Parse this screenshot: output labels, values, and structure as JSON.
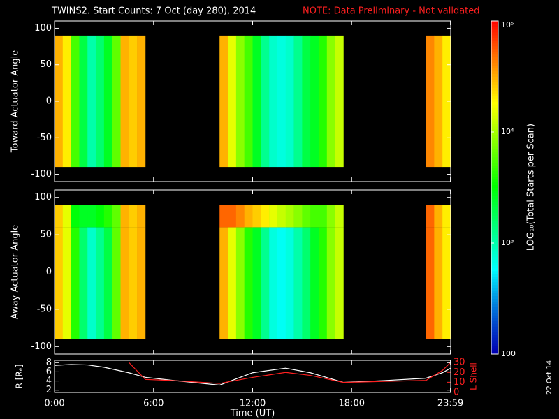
{
  "title": "TWINS2. Start Counts:  7 Oct (day 280), 2014",
  "note": "NOTE: Data Preliminary - Not validated",
  "footer_date": "22 Oct 14",
  "colorbar": {
    "label": "LOG₁₀(Total Starts per Scan)",
    "lim": [
      100,
      100000
    ],
    "log": true,
    "ticks": [
      100,
      {
        "value": 1000,
        "label": "10³"
      },
      {
        "value": 10000,
        "label": "10⁴"
      },
      {
        "value": 100000,
        "label": "10⁵"
      }
    ]
  },
  "chart_data": [
    {
      "type": "heatmap",
      "y_label": "Toward Actuator Angle",
      "xlim": [
        0,
        24
      ],
      "xticks": [
        0,
        6,
        12,
        18,
        23.983
      ],
      "ylim": [
        -110,
        110
      ],
      "yticks": [
        -100,
        -50,
        0,
        50,
        100
      ],
      "x_bins": [
        0,
        0.5,
        1,
        1.5,
        2,
        2.5,
        3,
        3.5,
        4,
        4.5,
        5,
        5.5,
        10,
        10.5,
        11,
        11.5,
        12,
        12.5,
        13,
        13.5,
        14,
        14.5,
        15,
        15.5,
        16,
        16.5,
        17,
        17.5,
        22.5,
        23,
        23.5,
        24
      ],
      "y_bins": [
        -90,
        90
      ],
      "values": [
        [
          30000
        ],
        [
          20000
        ],
        [
          5000
        ],
        [
          2000
        ],
        [
          1000
        ],
        [
          1500
        ],
        [
          2500
        ],
        [
          6000
        ],
        [
          30000
        ],
        [
          25000
        ],
        [
          30000
        ],
        [
          null
        ],
        [
          30000
        ],
        [
          15000
        ],
        [
          8000
        ],
        [
          5000
        ],
        [
          2500
        ],
        [
          1200
        ],
        [
          800
        ],
        [
          700
        ],
        [
          800
        ],
        [
          1200
        ],
        [
          2000
        ],
        [
          2500
        ],
        [
          4000
        ],
        [
          8000
        ],
        [
          12000
        ],
        [
          null
        ],
        [
          40000
        ],
        [
          30000
        ],
        [
          20000
        ]
      ]
    },
    {
      "type": "heatmap",
      "y_label": "Away Actuator Angle",
      "xlim": [
        0,
        24
      ],
      "xticks": [
        0,
        6,
        12,
        18,
        23.983
      ],
      "ylim": [
        -110,
        110
      ],
      "yticks": [
        -100,
        -50,
        0,
        50,
        100
      ],
      "x_bins": [
        0,
        0.5,
        1,
        1.5,
        2,
        2.5,
        3,
        3.5,
        4,
        4.5,
        5,
        5.5,
        10,
        10.5,
        11,
        11.5,
        12,
        12.5,
        13,
        13.5,
        14,
        14.5,
        15,
        15.5,
        16,
        16.5,
        17,
        17.5,
        22.5,
        23,
        23.5,
        24
      ],
      "y_bins": [
        -90,
        60,
        90
      ],
      "values": [
        [
          25000,
          25000
        ],
        [
          15000,
          15000
        ],
        [
          4000,
          3000
        ],
        [
          1500,
          2500
        ],
        [
          800,
          2500
        ],
        [
          1200,
          3000
        ],
        [
          2000,
          4000
        ],
        [
          6000,
          6000
        ],
        [
          30000,
          30000
        ],
        [
          25000,
          25000
        ],
        [
          30000,
          30000
        ],
        [
          null,
          null
        ],
        [
          30000,
          50000
        ],
        [
          15000,
          50000
        ],
        [
          8000,
          40000
        ],
        [
          4000,
          30000
        ],
        [
          2500,
          25000
        ],
        [
          1200,
          20000
        ],
        [
          700,
          15000
        ],
        [
          600,
          12000
        ],
        [
          700,
          10000
        ],
        [
          1000,
          8000
        ],
        [
          1500,
          6000
        ],
        [
          2500,
          5000
        ],
        [
          4000,
          5000
        ],
        [
          8000,
          8000
        ],
        [
          12000,
          12000
        ],
        [
          null,
          null
        ],
        [
          50000,
          50000
        ],
        [
          30000,
          30000
        ],
        [
          20000,
          20000
        ]
      ]
    },
    {
      "type": "line",
      "x_label": "Time (UT)",
      "y_label": "R [Rₑ]",
      "y2_label": "L Shell",
      "xlim": [
        0,
        24
      ],
      "xticks": [
        {
          "value": 0,
          "label": "0:00"
        },
        {
          "value": 6,
          "label": "6:00"
        },
        {
          "value": 12,
          "label": "12:00"
        },
        {
          "value": 18,
          "label": "18:00"
        },
        {
          "value": 23.983,
          "label": "23:59"
        }
      ],
      "ylim": [
        1.5,
        8.5
      ],
      "yticks": [
        2,
        4,
        6,
        8
      ],
      "y2lim": [
        0,
        32
      ],
      "y2ticks": [
        0,
        10,
        20,
        30
      ],
      "x": [
        0,
        1,
        2,
        3,
        4,
        4.5,
        5.5,
        7,
        10,
        12,
        14,
        15.5,
        17.5,
        20,
        22.5,
        23.5,
        24
      ],
      "series": [
        {
          "name": "R",
          "color": "#ffffff",
          "values": [
            7.4,
            7.6,
            7.5,
            7,
            6.2,
            5.8,
            4.8,
            4.2,
            3.1,
            5.8,
            6.8,
            5.8,
            3.7,
            4.1,
            4.6,
            5.8,
            6.8
          ]
        },
        {
          "name": "L Shell",
          "color": "#ff2020",
          "axis": "y2",
          "values": [
            null,
            null,
            null,
            null,
            null,
            30,
            13,
            12,
            9,
            15,
            20,
            17,
            10,
            11,
            12,
            22,
            30
          ]
        }
      ]
    }
  ]
}
